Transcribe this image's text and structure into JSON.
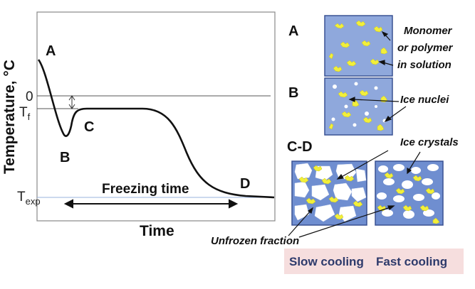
{
  "graph": {
    "ylabel": "Temperature, °C",
    "xlabel": "Time",
    "ticks": {
      "zero": "0",
      "tf_main": "T",
      "tf_sub": "f",
      "texp_main": "T",
      "texp_sub": "exp"
    },
    "points": {
      "a": "A",
      "b": "B",
      "c": "C",
      "d": "D"
    },
    "freezing_time": "Freezing time"
  },
  "panels": {
    "a_label": "A",
    "b_label": "B",
    "cd_label": "C-D",
    "annotations": {
      "monomer_line1": "Monomer",
      "monomer_line2": "or polymer",
      "monomer_line3": "in solution",
      "ice_nuclei": "Ice nuclei",
      "ice_crystals": "Ice crystals",
      "unfrozen": "Unfrozen fraction"
    },
    "slow_cooling": "Slow cooling",
    "fast_cooling": "Fast cooling"
  },
  "colors": {
    "panel_fill": "#8fa8dc",
    "panel_fill_dense": "#6f8ed0",
    "panel_border": "#3a5293",
    "monomer": "#f2ef3a",
    "caption_bg": "#f6dede",
    "caption_text": "#2d3a6b"
  }
}
